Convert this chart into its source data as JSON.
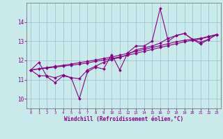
{
  "xlabel": "Windchill (Refroidissement éolien,°C)",
  "background_color": "#c8eaea",
  "line_color": "#880088",
  "grid_color": "#99bbcc",
  "x_hours": [
    0,
    1,
    2,
    3,
    4,
    5,
    6,
    7,
    8,
    9,
    10,
    11,
    12,
    13,
    14,
    15,
    16,
    17,
    18,
    19,
    20,
    21,
    22,
    23
  ],
  "series": [
    [
      11.5,
      11.9,
      11.15,
      10.85,
      11.2,
      11.1,
      10.0,
      11.4,
      11.65,
      11.55,
      12.3,
      11.5,
      12.4,
      12.75,
      12.75,
      13.0,
      14.7,
      13.0,
      13.3,
      13.4,
      13.1,
      12.85,
      13.1,
      13.35
    ],
    [
      11.5,
      11.2,
      11.2,
      11.1,
      11.25,
      11.1,
      11.05,
      11.5,
      11.7,
      11.9,
      12.05,
      12.15,
      12.3,
      12.55,
      12.65,
      12.75,
      12.9,
      13.15,
      13.3,
      13.4,
      13.1,
      12.95,
      13.1,
      13.35
    ],
    [
      11.5,
      11.55,
      11.6,
      11.65,
      11.7,
      11.75,
      11.8,
      11.87,
      11.95,
      12.02,
      12.1,
      12.18,
      12.27,
      12.37,
      12.47,
      12.57,
      12.67,
      12.77,
      12.87,
      12.97,
      13.05,
      13.12,
      13.22,
      13.35
    ],
    [
      11.5,
      11.57,
      11.63,
      11.69,
      11.75,
      11.81,
      11.88,
      11.95,
      12.02,
      12.1,
      12.18,
      12.27,
      12.37,
      12.47,
      12.57,
      12.67,
      12.77,
      12.87,
      12.97,
      13.05,
      13.1,
      13.15,
      13.25,
      13.35
    ]
  ],
  "ylim": [
    9.5,
    15.0
  ],
  "xlim": [
    -0.5,
    23.5
  ],
  "yticks": [
    10,
    11,
    12,
    13,
    14
  ],
  "xticks": [
    0,
    1,
    2,
    3,
    4,
    5,
    6,
    7,
    8,
    9,
    10,
    11,
    12,
    13,
    14,
    15,
    16,
    17,
    18,
    19,
    20,
    21,
    22,
    23
  ]
}
